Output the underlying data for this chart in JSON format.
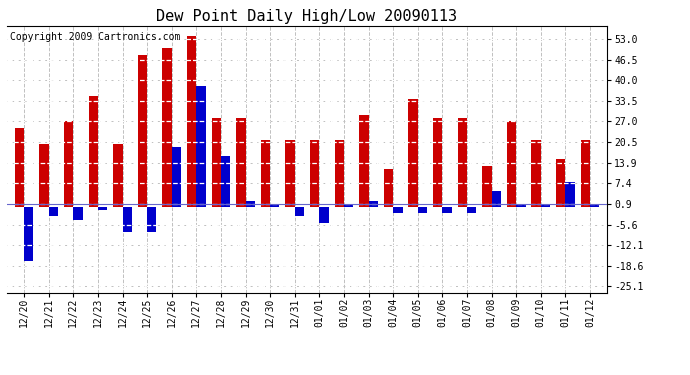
{
  "title": "Dew Point Daily High/Low 20090113",
  "copyright": "Copyright 2009 Cartronics.com",
  "dates": [
    "12/20",
    "12/21",
    "12/22",
    "12/23",
    "12/24",
    "12/25",
    "12/26",
    "12/27",
    "12/28",
    "12/29",
    "12/30",
    "12/31",
    "01/01",
    "01/02",
    "01/03",
    "01/04",
    "01/05",
    "01/06",
    "01/07",
    "01/08",
    "01/09",
    "01/10",
    "01/11",
    "01/12"
  ],
  "highs": [
    25,
    20,
    27,
    35,
    20,
    48,
    50,
    54,
    28,
    28,
    21,
    21,
    21,
    21,
    29,
    12,
    34,
    28,
    28,
    13,
    27,
    21,
    15,
    21
  ],
  "lows": [
    -17,
    -3,
    -4,
    -1,
    -8,
    -8,
    19,
    38,
    16,
    2,
    1,
    -3,
    -5,
    1,
    2,
    -2,
    -2,
    -2,
    -2,
    5,
    1,
    1,
    8,
    1
  ],
  "high_color": "#cc0000",
  "low_color": "#0000cc",
  "bg_color": "#ffffff",
  "grid_color": "#c0c0c0",
  "zero_line_color": "#6666cc",
  "yticks": [
    53.0,
    46.5,
    40.0,
    33.5,
    27.0,
    20.5,
    13.9,
    7.4,
    0.9,
    -5.6,
    -12.1,
    -18.6,
    -25.1
  ],
  "ymin": -27,
  "ymax": 57,
  "bar_width": 0.38,
  "title_fontsize": 11,
  "copyright_fontsize": 7,
  "tick_fontsize": 7
}
